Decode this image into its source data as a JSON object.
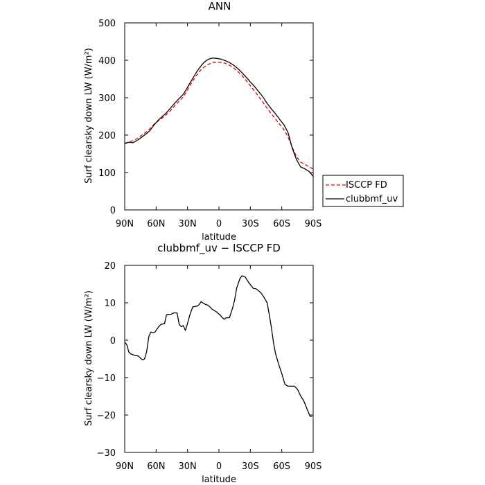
{
  "chart_data": [
    {
      "type": "line",
      "title": "ANN",
      "xlabel": "latitude",
      "ylabel": "Surf clearsky down LW (W/m²)",
      "ylim": [
        0,
        500
      ],
      "xlim": [
        90,
        -90
      ],
      "xticks": [
        "90N",
        "60N",
        "30N",
        "0",
        "30S",
        "60S",
        "90S"
      ],
      "yticks": [
        "0",
        "100",
        "200",
        "300",
        "400",
        "500"
      ],
      "legend": {
        "placement": "right, outside plot"
      },
      "x": [
        90,
        86,
        82,
        78,
        74,
        70,
        66,
        62,
        58,
        54,
        50,
        46,
        42,
        38,
        34,
        30,
        26,
        22,
        18,
        14,
        10,
        6,
        2,
        -2,
        -6,
        -10,
        -14,
        -18,
        -22,
        -26,
        -30,
        -34,
        -38,
        -42,
        -46,
        -50,
        -54,
        -58,
        -62,
        -66,
        -70,
        -74,
        -78,
        -82,
        -86,
        -90
      ],
      "series": [
        {
          "name": "ISCCP FD",
          "color": "#e00000",
          "dash": "dashed",
          "values": [
            178,
            182,
            185,
            191,
            199,
            207,
            217,
            229,
            238,
            246,
            255,
            266,
            279,
            291,
            302,
            321,
            340,
            358,
            372,
            382,
            389,
            394,
            395,
            394,
            392,
            387,
            379,
            370,
            359,
            346,
            332,
            318,
            303,
            288,
            272,
            257,
            243,
            229,
            215,
            195,
            168,
            143,
            128,
            122,
            115,
            110
          ]
        },
        {
          "name": "clubbmf_uv",
          "color": "#000000",
          "dash": "solid",
          "values": [
            177,
            181,
            180,
            186,
            194,
            202,
            212,
            227,
            240,
            250,
            260,
            273,
            286,
            298,
            309,
            328,
            347,
            366,
            382,
            395,
            403,
            406,
            405,
            403,
            399,
            394,
            387,
            378,
            367,
            355,
            342,
            330,
            316,
            302,
            285,
            270,
            257,
            242,
            228,
            207,
            165,
            135,
            115,
            110,
            103,
            90
          ]
        }
      ]
    },
    {
      "type": "line",
      "title": "clubbmf_uv − ISCCP FD",
      "xlabel": "latitude",
      "ylabel": "Surf clearsky down LW (W/m²)",
      "ylim": [
        -30,
        20
      ],
      "xlim": [
        90,
        -90
      ],
      "xticks": [
        "90N",
        "60N",
        "30N",
        "0",
        "30S",
        "60S",
        "90S"
      ],
      "yticks": [
        "−30",
        "−20",
        "−10",
        "0",
        "10",
        "20"
      ],
      "x": [
        90,
        88,
        86,
        84,
        80,
        77,
        75,
        73,
        71,
        69,
        67,
        65,
        63,
        61,
        59,
        57,
        55,
        52,
        50,
        48,
        46,
        43,
        40,
        38,
        36,
        34,
        32,
        30,
        28,
        25,
        23,
        21,
        19,
        17,
        15,
        13,
        11,
        9,
        7,
        5,
        3,
        1,
        -1,
        -3,
        -5,
        -7,
        -10,
        -13,
        -15,
        -17,
        -20,
        -22,
        -25,
        -28,
        -31,
        -33,
        -35,
        -37,
        -40,
        -42,
        -44,
        -46,
        -48,
        -50,
        -52,
        -54,
        -57,
        -60,
        -63,
        -66,
        -69,
        -72,
        -75,
        -78,
        -81,
        -84,
        -87,
        -89
      ],
      "series": [
        {
          "color": "#000000",
          "dash": "solid",
          "values": [
            -0.5,
            -1.2,
            -3.2,
            -3.7,
            -4.1,
            -4.2,
            -4.8,
            -5.3,
            -5.0,
            -3.0,
            1.0,
            2.2,
            2.0,
            2.2,
            3.0,
            3.8,
            4.3,
            4.4,
            6.8,
            6.9,
            6.9,
            7.3,
            7.3,
            4.2,
            3.6,
            3.9,
            2.6,
            4.5,
            6.6,
            8.9,
            9.0,
            9.1,
            9.5,
            10.3,
            9.9,
            9.6,
            9.4,
            9.0,
            8.4,
            8.0,
            7.7,
            7.2,
            6.8,
            6.1,
            5.6,
            6.0,
            6.0,
            8.5,
            10.8,
            14.0,
            16.4,
            17.2,
            16.9,
            15.6,
            14.5,
            13.8,
            13.8,
            13.4,
            12.7,
            11.9,
            11.0,
            10.0,
            7.0,
            3.5,
            -0.5,
            -3.5,
            -6.4,
            -8.9,
            -11.8,
            -12.3,
            -12.3,
            -12.3,
            -13.1,
            -14.9,
            -16.2,
            -18.3,
            -20.3,
            -20.4
          ]
        }
      ]
    }
  ]
}
